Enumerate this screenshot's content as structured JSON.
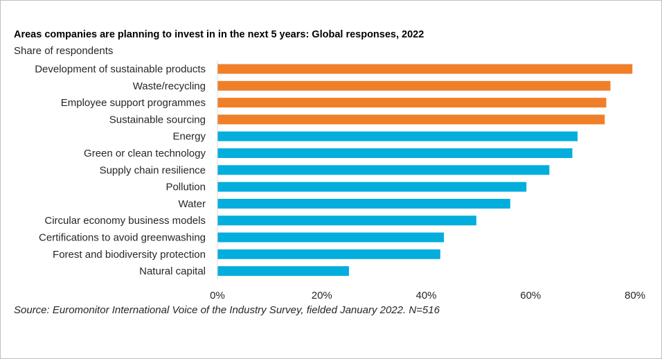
{
  "title": "Areas companies are planning to invest in in the next 5 years: Global responses, 2022",
  "subtitle": "Share  of respondents",
  "source": "Source: Euromonitor International Voice of the Industry Survey, fielded January 2022. N=516",
  "colors": {
    "highlight": "#F07F2A",
    "base": "#04AEDC",
    "axis": "#D9D9D9"
  },
  "chart_data": {
    "type": "bar",
    "orientation": "horizontal",
    "categories": [
      "Development of sustainable products",
      "Waste/recycling",
      "Employee support programmes",
      "Sustainable sourcing",
      "Energy",
      "Green or clean technology",
      "Supply chain resilience",
      "Pollution",
      "Water",
      "Circular economy business models",
      "Certifications to avoid greenwashing",
      "Forest and biodiversity protection",
      "Natural capital"
    ],
    "values": [
      79.5,
      75.3,
      74.5,
      74.2,
      69.0,
      68.0,
      63.6,
      59.2,
      56.1,
      49.6,
      43.4,
      42.7,
      25.2
    ],
    "highlighted": [
      true,
      true,
      true,
      true,
      false,
      false,
      false,
      false,
      false,
      false,
      false,
      false,
      false
    ],
    "xlim": [
      0,
      80
    ],
    "xticks": [
      0,
      20,
      40,
      60,
      80
    ],
    "xtick_labels": [
      "0%",
      "20%",
      "40%",
      "60%",
      "80%"
    ],
    "unit": "%",
    "grid": false,
    "legend": "none"
  }
}
